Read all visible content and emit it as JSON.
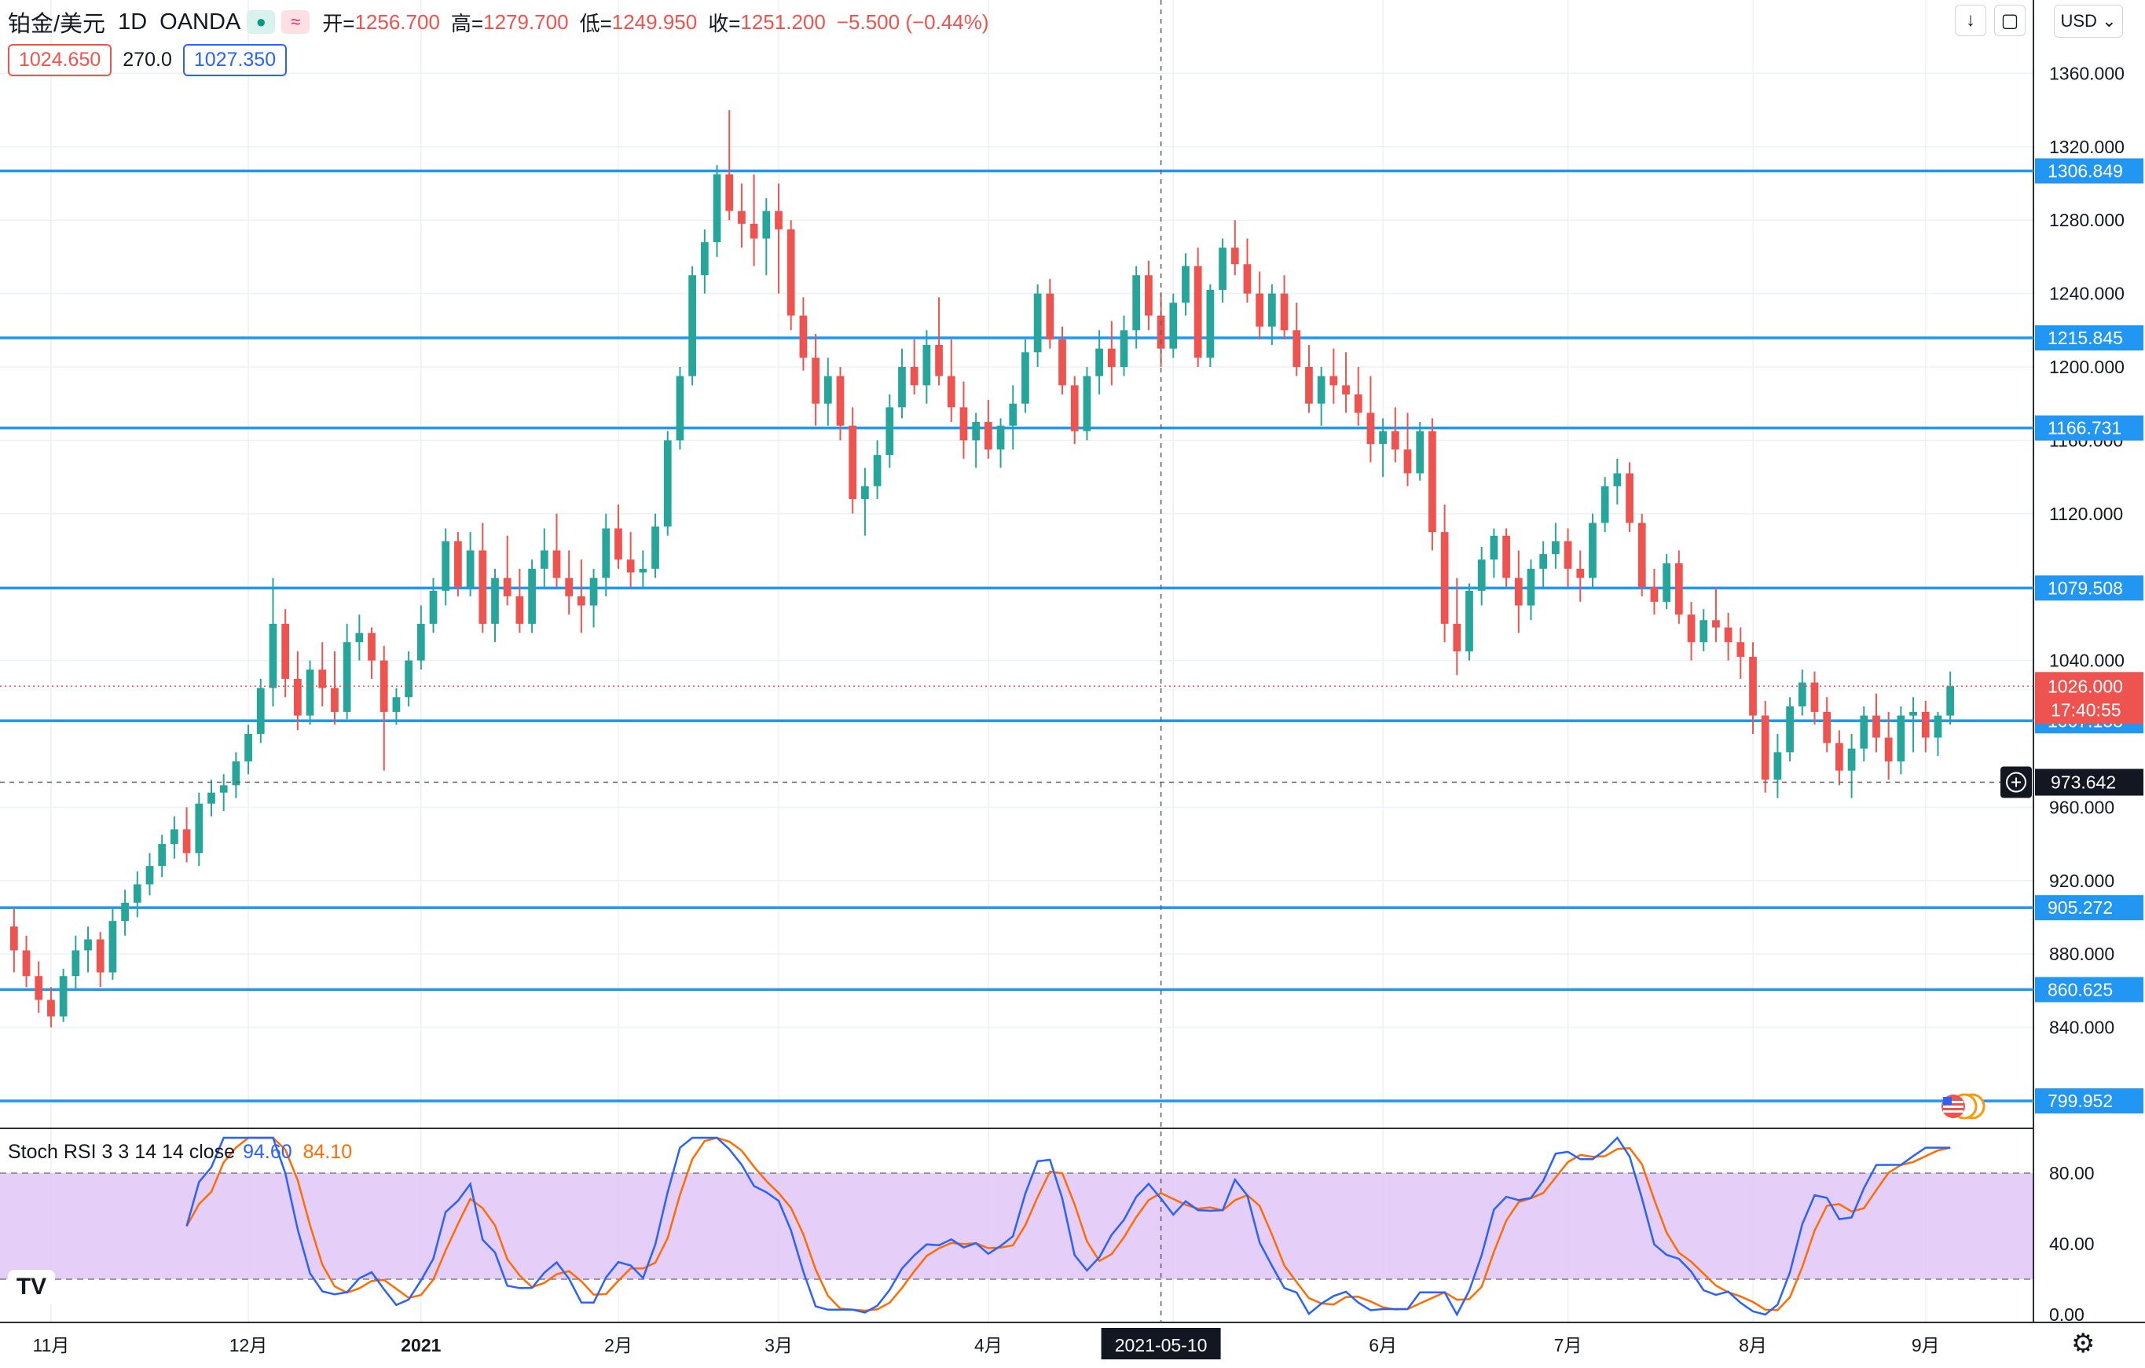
{
  "header": {
    "symbol": "铂金/美元",
    "interval": "1D",
    "exchange": "OANDA",
    "open_label": "开=",
    "open": "1256.700",
    "high_label": "高=",
    "high": "1279.700",
    "low_label": "低=",
    "low": "1249.950",
    "close_label": "收=",
    "close": "1251.200",
    "change": "−5.500 (−0.44%)",
    "bid": "1024.650",
    "spread": "270.0",
    "ask": "1027.350",
    "currency": "USD"
  },
  "icons": {
    "visibility": "eye-icon",
    "indicator": "wave-icon",
    "download": "download-icon",
    "fullscreen": "fullscreen-icon",
    "settings": "gear-icon",
    "add_alert": "plus-circle-icon",
    "logo": "tradingview-logo-icon",
    "events": "us-flag-events-icon"
  },
  "colors": {
    "up": "#26a69a",
    "down": "#ef5350",
    "hline": "#2196f3",
    "stoch_k": "#2962ff",
    "stoch_d": "#ff6d00",
    "stoch_band": "#e1c5f7",
    "price_tag": "#ef5350"
  },
  "stoch": {
    "label": "Stoch RSI 3 3 14 14 close",
    "k_value": "94.60",
    "d_value": "84.10",
    "ticks": [
      "80.00",
      "40.00",
      "0.00"
    ]
  },
  "chart_data": {
    "type": "candlestick",
    "price_axis_ticks": [
      "1360.000",
      "1320.000",
      "1280.000",
      "1240.000",
      "1200.000",
      "1160.000",
      "1120.000",
      "1080.000",
      "1040.000",
      "960.000",
      "920.000",
      "880.000",
      "840.000"
    ],
    "ylim": [
      785,
      1400
    ],
    "x_labels": [
      "11月",
      "12月",
      "2021",
      "2月",
      "3月",
      "4月",
      "5月",
      "6月",
      "7月",
      "8月",
      "9月"
    ],
    "crosshair_date": "2021-05-10",
    "crosshair_price": "973.642",
    "last_price": "1026.000",
    "countdown": "17:40:55",
    "horizontal_levels": [
      "1306.849",
      "1215.845",
      "1166.731",
      "1079.508",
      "1007.158",
      "905.272",
      "860.625",
      "799.952"
    ],
    "ohlc": [
      [
        895,
        905,
        870,
        882
      ],
      [
        882,
        890,
        862,
        868
      ],
      [
        868,
        876,
        848,
        855
      ],
      [
        855,
        862,
        840,
        846
      ],
      [
        846,
        872,
        843,
        868
      ],
      [
        868,
        890,
        860,
        882
      ],
      [
        882,
        895,
        870,
        888
      ],
      [
        888,
        892,
        862,
        870
      ],
      [
        870,
        905,
        866,
        898
      ],
      [
        898,
        915,
        890,
        908
      ],
      [
        908,
        925,
        900,
        918
      ],
      [
        918,
        935,
        912,
        928
      ],
      [
        928,
        945,
        922,
        940
      ],
      [
        940,
        955,
        932,
        948
      ],
      [
        948,
        960,
        930,
        935
      ],
      [
        935,
        968,
        928,
        962
      ],
      [
        962,
        975,
        955,
        968
      ],
      [
        968,
        978,
        958,
        972
      ],
      [
        972,
        990,
        965,
        985
      ],
      [
        985,
        1005,
        978,
        1000
      ],
      [
        1000,
        1030,
        995,
        1025
      ],
      [
        1025,
        1085,
        1015,
        1060
      ],
      [
        1060,
        1068,
        1020,
        1030
      ],
      [
        1030,
        1045,
        1002,
        1010
      ],
      [
        1010,
        1040,
        1005,
        1035
      ],
      [
        1035,
        1050,
        1015,
        1025
      ],
      [
        1025,
        1045,
        1005,
        1012
      ],
      [
        1012,
        1060,
        1008,
        1050
      ],
      [
        1050,
        1065,
        1040,
        1055
      ],
      [
        1055,
        1058,
        1030,
        1040
      ],
      [
        1040,
        1048,
        980,
        1012
      ],
      [
        1012,
        1025,
        1005,
        1020
      ],
      [
        1020,
        1045,
        1015,
        1040
      ],
      [
        1040,
        1070,
        1035,
        1060
      ],
      [
        1060,
        1085,
        1055,
        1078
      ],
      [
        1078,
        1112,
        1070,
        1105
      ],
      [
        1105,
        1110,
        1075,
        1080
      ],
      [
        1080,
        1110,
        1075,
        1100
      ],
      [
        1100,
        1115,
        1055,
        1060
      ],
      [
        1060,
        1090,
        1050,
        1085
      ],
      [
        1085,
        1108,
        1070,
        1075
      ],
      [
        1075,
        1090,
        1055,
        1060
      ],
      [
        1060,
        1095,
        1055,
        1090
      ],
      [
        1090,
        1112,
        1080,
        1100
      ],
      [
        1100,
        1120,
        1080,
        1085
      ],
      [
        1085,
        1100,
        1065,
        1075
      ],
      [
        1075,
        1095,
        1055,
        1070
      ],
      [
        1070,
        1090,
        1058,
        1085
      ],
      [
        1085,
        1120,
        1075,
        1112
      ],
      [
        1112,
        1125,
        1090,
        1095
      ],
      [
        1095,
        1110,
        1080,
        1088
      ],
      [
        1088,
        1100,
        1080,
        1090
      ],
      [
        1090,
        1120,
        1085,
        1113
      ],
      [
        1113,
        1165,
        1108,
        1160
      ],
      [
        1160,
        1200,
        1155,
        1195
      ],
      [
        1195,
        1255,
        1190,
        1250
      ],
      [
        1250,
        1275,
        1240,
        1268
      ],
      [
        1268,
        1310,
        1260,
        1305
      ],
      [
        1305,
        1340,
        1280,
        1285
      ],
      [
        1285,
        1300,
        1265,
        1278
      ],
      [
        1278,
        1305,
        1255,
        1270
      ],
      [
        1270,
        1292,
        1250,
        1285
      ],
      [
        1285,
        1300,
        1240,
        1275
      ],
      [
        1275,
        1280,
        1220,
        1228
      ],
      [
        1228,
        1238,
        1198,
        1205
      ],
      [
        1205,
        1218,
        1168,
        1180
      ],
      [
        1180,
        1205,
        1168,
        1195
      ],
      [
        1195,
        1200,
        1160,
        1168
      ],
      [
        1168,
        1178,
        1120,
        1128
      ],
      [
        1128,
        1145,
        1108,
        1135
      ],
      [
        1135,
        1160,
        1128,
        1152
      ],
      [
        1152,
        1185,
        1145,
        1178
      ],
      [
        1178,
        1210,
        1172,
        1200
      ],
      [
        1200,
        1215,
        1185,
        1190
      ],
      [
        1190,
        1220,
        1180,
        1212
      ],
      [
        1212,
        1238,
        1190,
        1195
      ],
      [
        1195,
        1215,
        1170,
        1178
      ],
      [
        1178,
        1192,
        1150,
        1160
      ],
      [
        1160,
        1175,
        1145,
        1170
      ],
      [
        1170,
        1182,
        1150,
        1155
      ],
      [
        1155,
        1172,
        1145,
        1168
      ],
      [
        1168,
        1190,
        1155,
        1180
      ],
      [
        1180,
        1215,
        1175,
        1208
      ],
      [
        1208,
        1245,
        1200,
        1240
      ],
      [
        1240,
        1248,
        1210,
        1215
      ],
      [
        1215,
        1222,
        1185,
        1190
      ],
      [
        1190,
        1195,
        1158,
        1165
      ],
      [
        1165,
        1200,
        1160,
        1195
      ],
      [
        1195,
        1220,
        1185,
        1210
      ],
      [
        1210,
        1225,
        1190,
        1200
      ],
      [
        1200,
        1228,
        1195,
        1220
      ],
      [
        1220,
        1255,
        1210,
        1250
      ],
      [
        1250,
        1258,
        1220,
        1228
      ],
      [
        1228,
        1240,
        1200,
        1210
      ],
      [
        1210,
        1240,
        1205,
        1235
      ],
      [
        1235,
        1262,
        1228,
        1255
      ],
      [
        1255,
        1265,
        1200,
        1205
      ],
      [
        1205,
        1245,
        1200,
        1242
      ],
      [
        1242,
        1270,
        1235,
        1265
      ],
      [
        1265,
        1280,
        1250,
        1256
      ],
      [
        1256,
        1270,
        1235,
        1240
      ],
      [
        1240,
        1252,
        1215,
        1222
      ],
      [
        1222,
        1245,
        1212,
        1240
      ],
      [
        1240,
        1250,
        1215,
        1220
      ],
      [
        1220,
        1235,
        1195,
        1200
      ],
      [
        1200,
        1212,
        1175,
        1180
      ],
      [
        1180,
        1200,
        1168,
        1195
      ],
      [
        1195,
        1210,
        1180,
        1190
      ],
      [
        1190,
        1208,
        1175,
        1185
      ],
      [
        1185,
        1200,
        1168,
        1175
      ],
      [
        1175,
        1195,
        1148,
        1158
      ],
      [
        1158,
        1172,
        1140,
        1165
      ],
      [
        1165,
        1178,
        1148,
        1155
      ],
      [
        1155,
        1175,
        1135,
        1142
      ],
      [
        1142,
        1170,
        1138,
        1165
      ],
      [
        1165,
        1172,
        1100,
        1110
      ],
      [
        1110,
        1125,
        1050,
        1060
      ],
      [
        1060,
        1085,
        1032,
        1045
      ],
      [
        1045,
        1082,
        1040,
        1078
      ],
      [
        1078,
        1102,
        1070,
        1095
      ],
      [
        1095,
        1112,
        1085,
        1108
      ],
      [
        1108,
        1112,
        1080,
        1085
      ],
      [
        1085,
        1100,
        1055,
        1070
      ],
      [
        1070,
        1095,
        1062,
        1090
      ],
      [
        1090,
        1105,
        1080,
        1098
      ],
      [
        1098,
        1115,
        1090,
        1105
      ],
      [
        1105,
        1112,
        1080,
        1090
      ],
      [
        1090,
        1100,
        1072,
        1085
      ],
      [
        1085,
        1120,
        1080,
        1115
      ],
      [
        1115,
        1140,
        1110,
        1135
      ],
      [
        1135,
        1150,
        1125,
        1142
      ],
      [
        1142,
        1148,
        1110,
        1115
      ],
      [
        1115,
        1120,
        1075,
        1080
      ],
      [
        1080,
        1090,
        1065,
        1072
      ],
      [
        1072,
        1098,
        1068,
        1093
      ],
      [
        1093,
        1100,
        1060,
        1065
      ],
      [
        1065,
        1072,
        1040,
        1050
      ],
      [
        1050,
        1068,
        1045,
        1062
      ],
      [
        1062,
        1080,
        1050,
        1058
      ],
      [
        1058,
        1066,
        1040,
        1050
      ],
      [
        1050,
        1058,
        1030,
        1042
      ],
      [
        1042,
        1050,
        1000,
        1010
      ],
      [
        1010,
        1018,
        968,
        975
      ],
      [
        975,
        1000,
        965,
        990
      ],
      [
        990,
        1020,
        985,
        1015
      ],
      [
        1015,
        1035,
        1010,
        1028
      ],
      [
        1028,
        1034,
        1005,
        1012
      ],
      [
        1012,
        1020,
        990,
        995
      ],
      [
        995,
        1002,
        972,
        980
      ],
      [
        980,
        1000,
        965,
        992
      ],
      [
        992,
        1015,
        985,
        1010
      ],
      [
        1010,
        1022,
        990,
        998
      ],
      [
        998,
        1012,
        975,
        985
      ],
      [
        985,
        1015,
        978,
        1010
      ],
      [
        1010,
        1020,
        990,
        1012
      ],
      [
        1012,
        1018,
        990,
        998
      ],
      [
        998,
        1012,
        988,
        1010
      ],
      [
        1010,
        1034,
        1005,
        1026
      ]
    ]
  }
}
